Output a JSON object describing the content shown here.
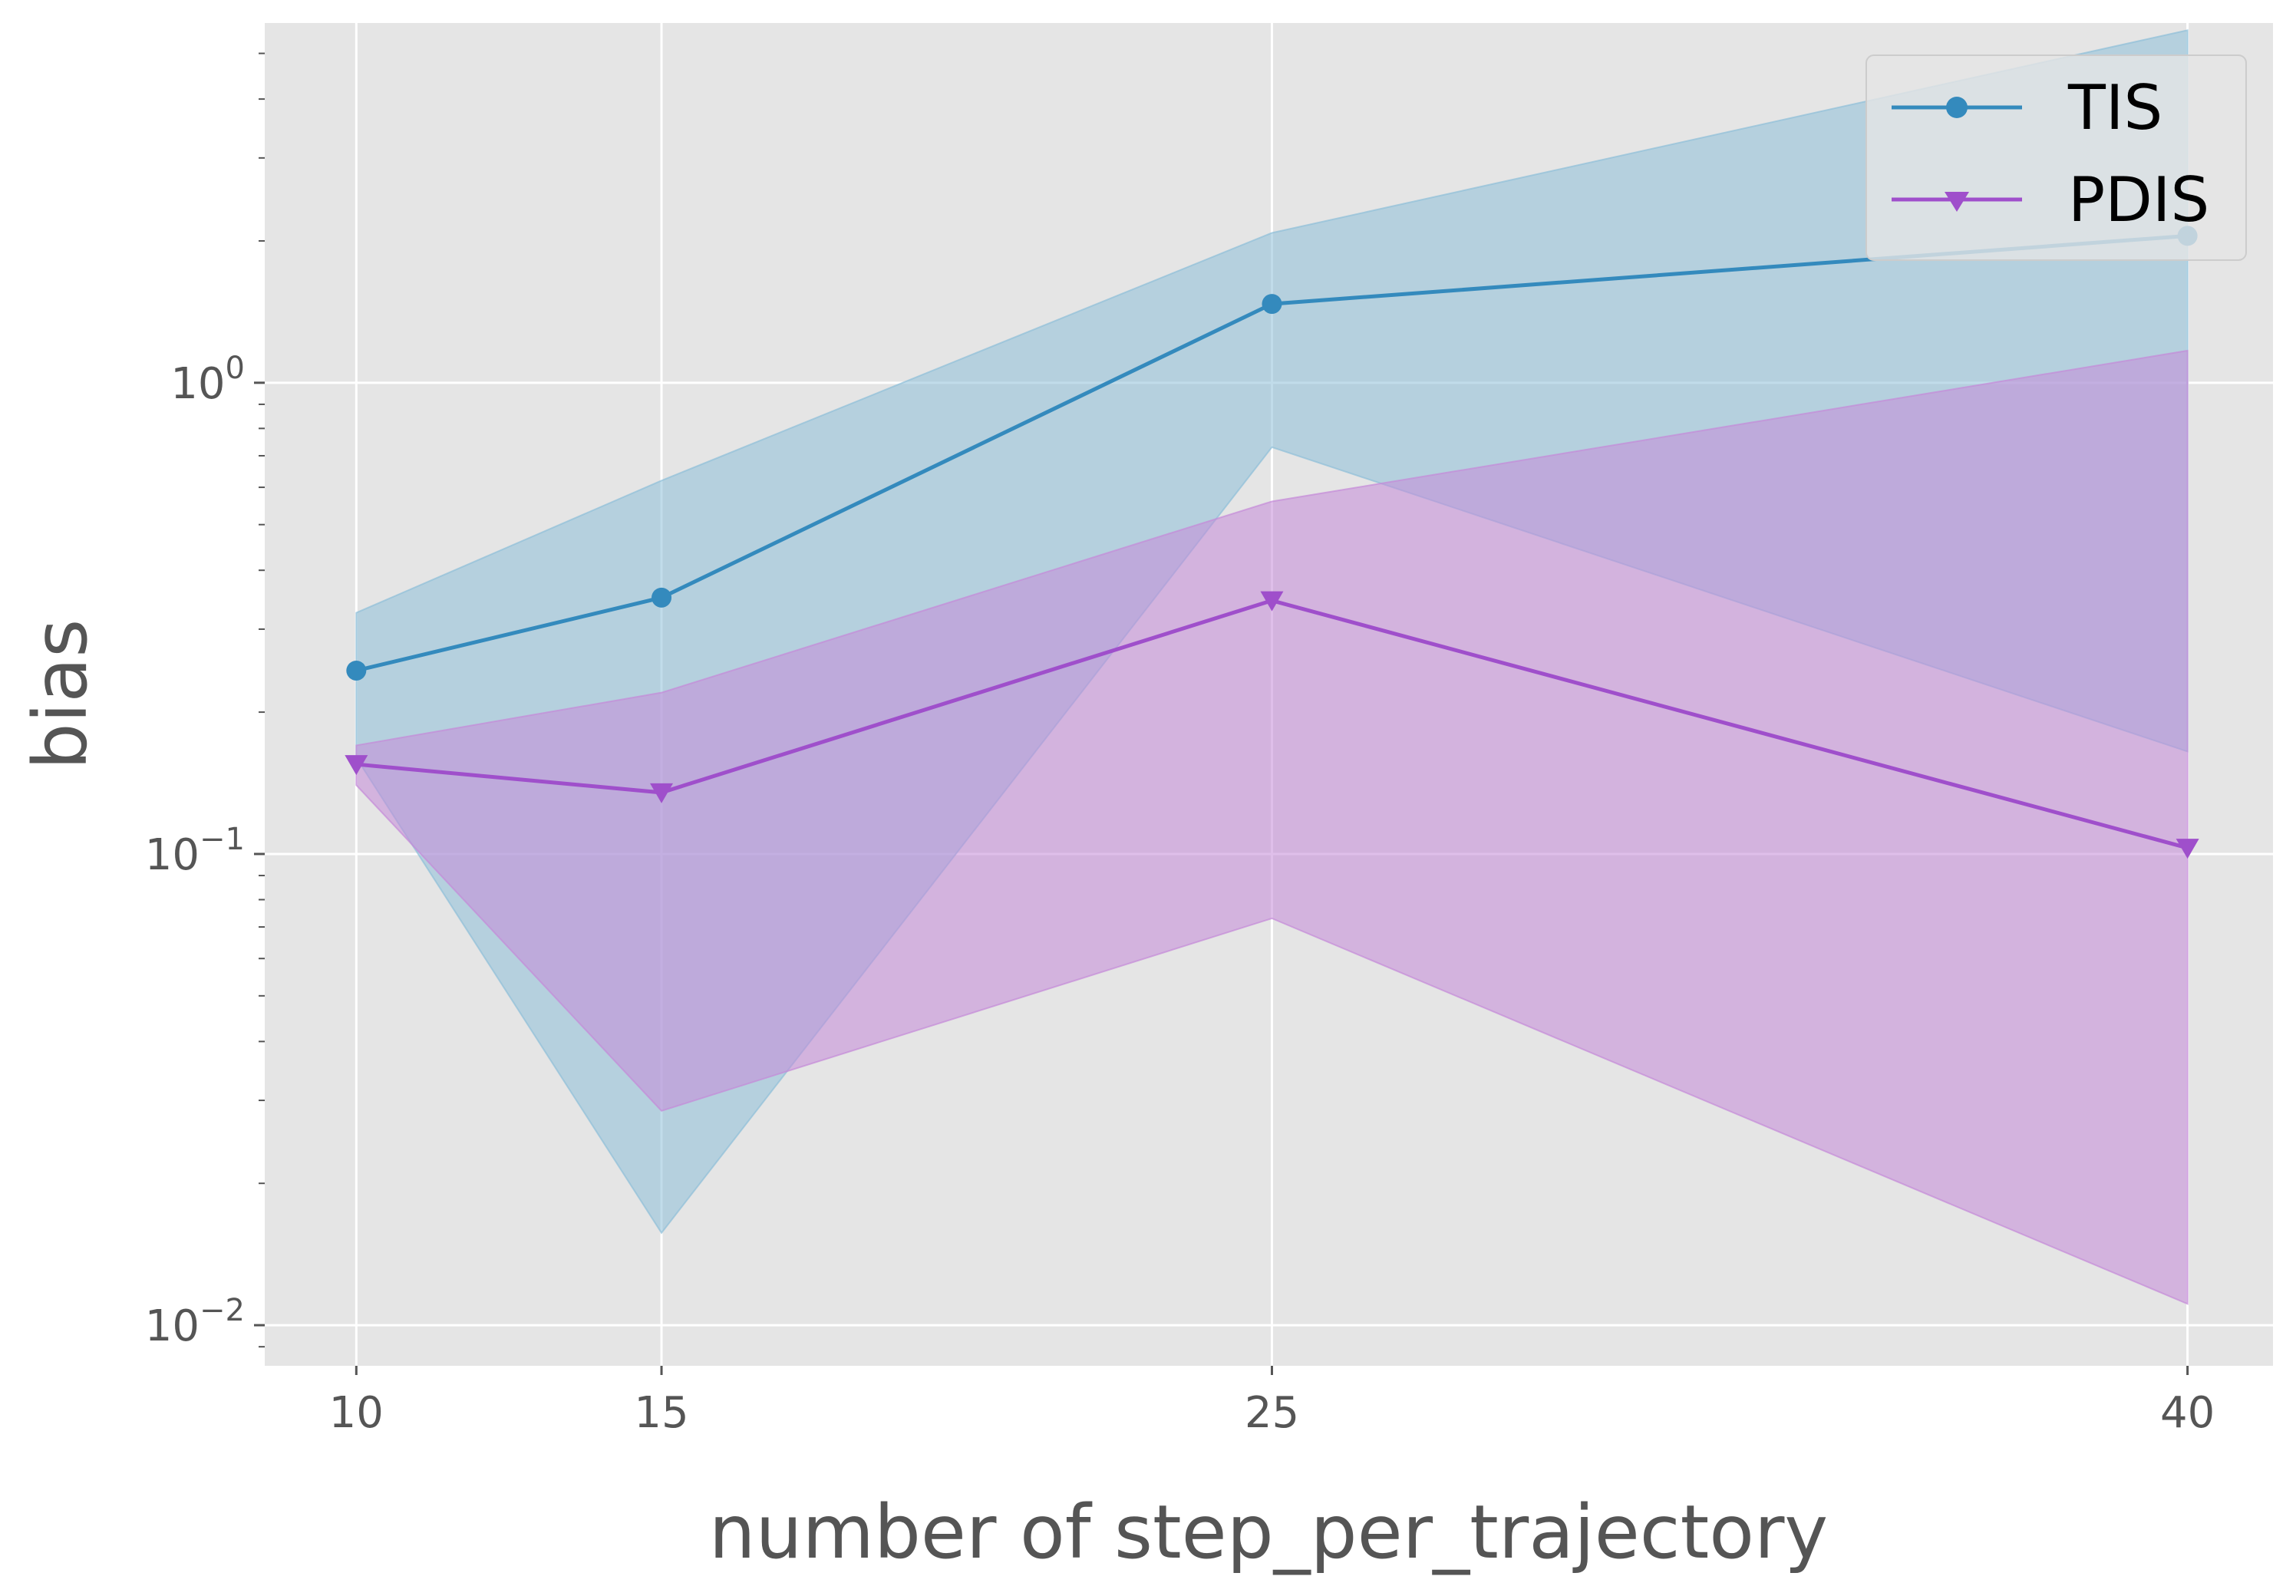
{
  "chart_data": {
    "type": "line",
    "xlabel": "number of step_per_trajectory",
    "ylabel": "bias",
    "x": [
      10,
      15,
      25,
      40
    ],
    "xticks": [
      10,
      15,
      25,
      40
    ],
    "xlim": [
      8.5,
      41.4
    ],
    "yscale": "log",
    "ylim": [
      0.0082,
      5.8
    ],
    "yticks": [
      {
        "value": 0.01,
        "base": "10",
        "exp": "−2"
      },
      {
        "value": 0.1,
        "base": "10",
        "exp": "−1"
      },
      {
        "value": 1,
        "base": "10",
        "exp": "0"
      }
    ],
    "grid": true,
    "legend_position": "top-right",
    "series": [
      {
        "name": "TIS",
        "color": "#348abd",
        "marker": "circle",
        "values": [
          0.245,
          0.35,
          1.47,
          2.05
        ],
        "band_lower": [
          0.16,
          0.0157,
          0.73,
          0.165
        ],
        "band_upper": [
          0.325,
          0.62,
          2.08,
          5.6
        ]
      },
      {
        "name": "PDIS",
        "color": "#9f4fcb",
        "marker": "triangle-down",
        "values": [
          0.155,
          0.135,
          0.345,
          0.103
        ],
        "band_lower": [
          0.14,
          0.0285,
          0.073,
          0.0111
        ],
        "band_upper": [
          0.17,
          0.22,
          0.56,
          1.17
        ]
      }
    ]
  }
}
